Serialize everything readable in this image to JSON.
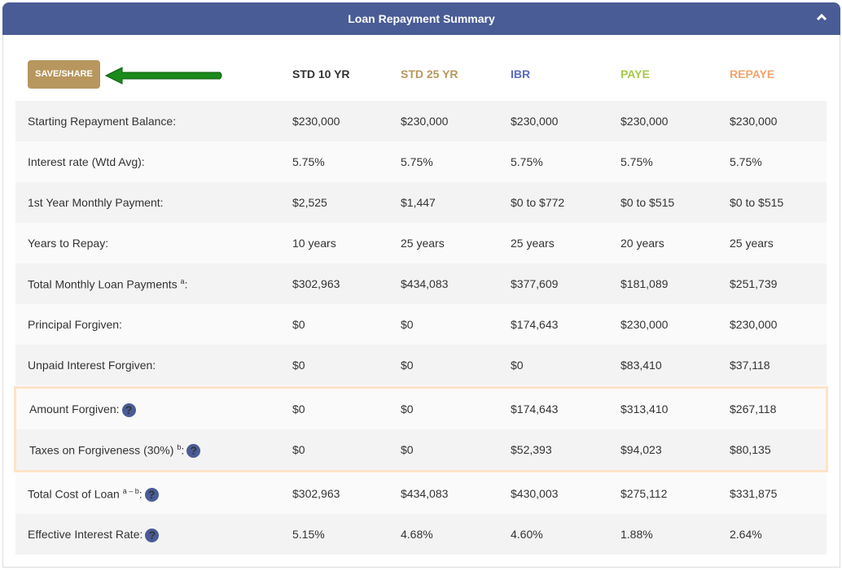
{
  "header": {
    "title": "Loan Repayment Summary",
    "collapse_icon": "chevron-up-icon"
  },
  "save_button": "SAVE/SHARE",
  "columns": [
    {
      "label": "STD 10 YR",
      "color": "#333333"
    },
    {
      "label": "STD 25 YR",
      "color": "#b7975e"
    },
    {
      "label": "IBR",
      "color": "#5b6abf"
    },
    {
      "label": "PAYE",
      "color": "#a6c84a"
    },
    {
      "label": "REPAYE",
      "color": "#f2a46e"
    }
  ],
  "rows": [
    {
      "label": "Starting Repayment Balance:",
      "sup": "",
      "help": false,
      "values": [
        "$230,000",
        "$230,000",
        "$230,000",
        "$230,000",
        "$230,000"
      ]
    },
    {
      "label": "Interest rate (Wtd Avg):",
      "sup": "",
      "help": false,
      "values": [
        "5.75%",
        "5.75%",
        "5.75%",
        "5.75%",
        "5.75%"
      ]
    },
    {
      "label": "1st Year Monthly Payment:",
      "sup": "",
      "help": false,
      "values": [
        "$2,525",
        "$1,447",
        "$0 to $772",
        "$0 to $515",
        "$0 to $515"
      ]
    },
    {
      "label": "Years to Repay:",
      "sup": "",
      "help": false,
      "values": [
        "10 years",
        "25 years",
        "25 years",
        "20 years",
        "25 years"
      ]
    },
    {
      "label": "Total Monthly Loan Payments ",
      "sup": "a",
      "suffix": ":",
      "help": false,
      "values": [
        "$302,963",
        "$434,083",
        "$377,609",
        "$181,089",
        "$251,739"
      ]
    },
    {
      "label": "Principal Forgiven:",
      "sup": "",
      "help": false,
      "values": [
        "$0",
        "$0",
        "$174,643",
        "$230,000",
        "$230,000"
      ]
    },
    {
      "label": "Unpaid Interest Forgiven:",
      "sup": "",
      "help": false,
      "values": [
        "$0",
        "$0",
        "$0",
        "$83,410",
        "$37,118"
      ]
    },
    {
      "label": "Amount Forgiven:",
      "sup": "",
      "help": true,
      "values": [
        "$0",
        "$0",
        "$174,643",
        "$313,410",
        "$267,118"
      ]
    },
    {
      "label": "Taxes on Forgiveness (30%) ",
      "sup": "b",
      "suffix": ":",
      "help": true,
      "values": [
        "$0",
        "$0",
        "$52,393",
        "$94,023",
        "$80,135"
      ]
    },
    {
      "label": "Total Cost of Loan ",
      "sup": "a – b",
      "suffix": ":",
      "help": true,
      "values": [
        "$302,963",
        "$434,083",
        "$430,003",
        "$275,112",
        "$331,875"
      ]
    },
    {
      "label": "Effective Interest Rate:",
      "sup": "",
      "help": true,
      "values": [
        "5.15%",
        "4.68%",
        "4.60%",
        "1.88%",
        "2.64%"
      ]
    }
  ]
}
